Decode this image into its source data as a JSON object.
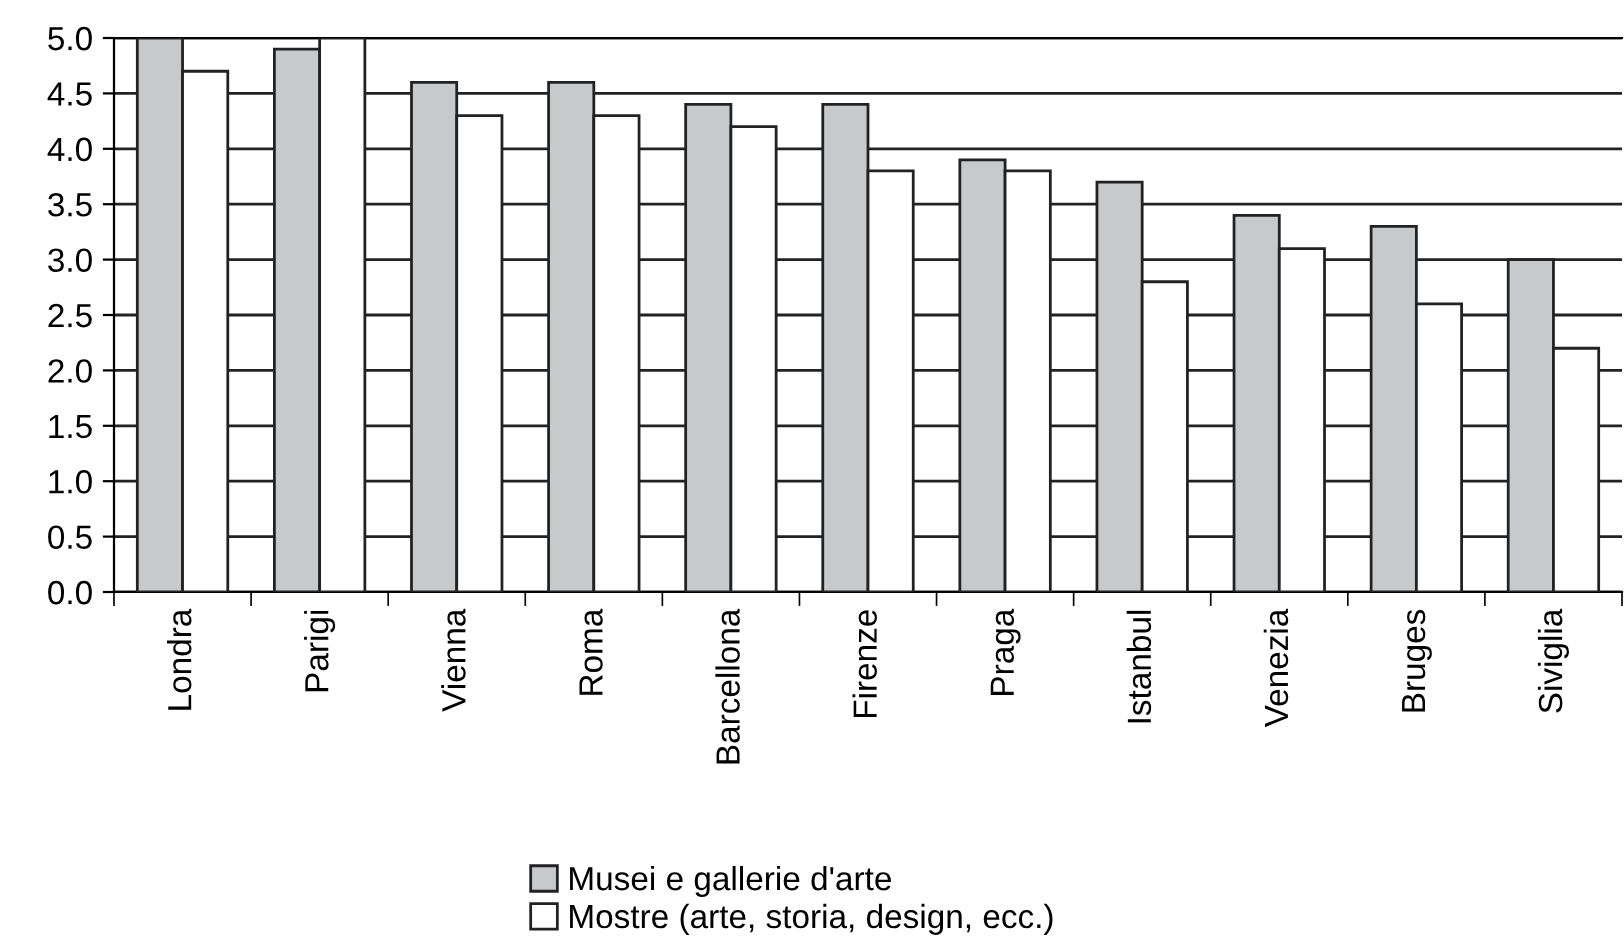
{
  "chart_data": {
    "type": "bar",
    "categories": [
      "Londra",
      "Parigi",
      "Vienna",
      "Roma",
      "Barcellona",
      "Firenze",
      "Praga",
      "Istanbul",
      "Venezia",
      "Bruges",
      "Siviglia"
    ],
    "series": [
      {
        "name": "Musei e gallerie d'arte",
        "color": "#c8c9cb",
        "values": [
          5.0,
          4.9,
          4.6,
          4.6,
          4.4,
          4.4,
          3.9,
          3.7,
          3.4,
          3.3,
          3.0
        ]
      },
      {
        "name": "Mostre (arte, storia, design, ecc.)",
        "color": "#ffffff",
        "values": [
          4.7,
          5.0,
          4.3,
          4.3,
          4.2,
          3.8,
          3.8,
          2.8,
          3.1,
          2.6,
          2.2
        ]
      }
    ],
    "ylim": [
      0,
      5
    ],
    "yticks": [
      {
        "value": 0,
        "label": "0.0"
      },
      {
        "value": 0.5,
        "label": "0.5"
      },
      {
        "value": 1,
        "label": "1.0"
      },
      {
        "value": 1.5,
        "label": "1.5"
      },
      {
        "value": 2,
        "label": "2.0"
      },
      {
        "value": 2.5,
        "label": "2.5"
      },
      {
        "value": 3,
        "label": "3.0"
      },
      {
        "value": 3.5,
        "label": "3.5"
      },
      {
        "value": 4,
        "label": "4.0"
      },
      {
        "value": 4.5,
        "label": "4.5"
      },
      {
        "value": 5,
        "label": "5.0"
      }
    ],
    "grid": "y",
    "legend": "bottom"
  }
}
